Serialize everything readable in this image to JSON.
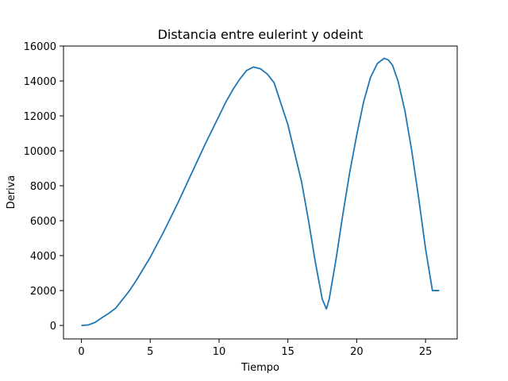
{
  "chart_data": {
    "type": "line",
    "title": "Distancia entre eulerint y odeint",
    "xlabel": "Tiempo",
    "ylabel": "Deriva",
    "xlim": [
      -1.3,
      27.3
    ],
    "ylim": [
      -770,
      16000
    ],
    "xticks": [
      0,
      5,
      10,
      15,
      20,
      25
    ],
    "yticks": [
      0,
      2000,
      4000,
      6000,
      8000,
      10000,
      12000,
      14000,
      16000
    ],
    "grid": false,
    "series": [
      {
        "color": "#1f77b4",
        "x": [
          0,
          0.5,
          1,
          1.5,
          2,
          2.5,
          3,
          3.5,
          4,
          5,
          6,
          7,
          8,
          9,
          10,
          10.5,
          11,
          11.5,
          12,
          12.5,
          13,
          13.5,
          14,
          15,
          16,
          16.5,
          17,
          17.5,
          17.8,
          18,
          18.5,
          19,
          19.5,
          20,
          20.5,
          21,
          21.5,
          22,
          22.3,
          22.6,
          23,
          23.5,
          24,
          24.5,
          25,
          25.5,
          26
        ],
        "y": [
          0,
          30,
          180,
          450,
          700,
          1000,
          1500,
          2000,
          2600,
          3900,
          5400,
          7000,
          8700,
          10400,
          12000,
          12800,
          13500,
          14100,
          14600,
          14800,
          14700,
          14400,
          13900,
          11500,
          8200,
          6000,
          3600,
          1500,
          950,
          1500,
          3800,
          6400,
          8800,
          10900,
          12800,
          14200,
          15000,
          15300,
          15200,
          14900,
          14000,
          12300,
          10000,
          7300,
          4400,
          2000,
          2000
        ]
      }
    ]
  }
}
